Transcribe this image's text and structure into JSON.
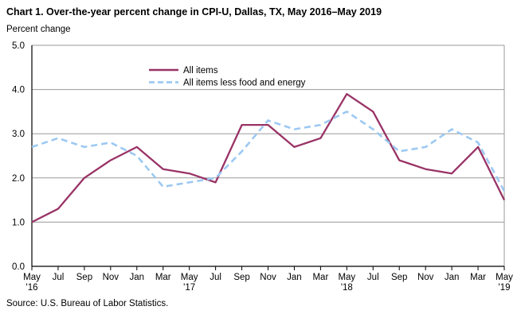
{
  "title": "Chart 1. Over-the-year percent change in CPI-U, Dallas, TX, May 2016–May 2019",
  "unit_label": "Percent change",
  "source": "Source: U.S. Bureau of Labor Statistics.",
  "colors": {
    "all_items": "#993366",
    "less_food_energy": "#9DC9F2",
    "grid": "#9a9a9a",
    "axis": "#000000",
    "text": "#000000"
  },
  "chart_data": {
    "type": "line",
    "title": "Chart 1. Over-the-year percent change in CPI-U, Dallas, TX, May 2016–May 2019",
    "ylabel": "Percent change",
    "xlabel": "",
    "ylim": [
      0,
      5
    ],
    "ytick_step": 1,
    "ytick_labels": [
      "0.0",
      "1.0",
      "2.0",
      "3.0",
      "4.0",
      "5.0"
    ],
    "grid": true,
    "legend_position": "inside-top",
    "x_labels": [
      {
        "m": "May",
        "y": "'16"
      },
      {
        "m": "Jul"
      },
      {
        "m": "Sep"
      },
      {
        "m": "Nov"
      },
      {
        "m": "Jan"
      },
      {
        "m": "Mar"
      },
      {
        "m": "May",
        "y": "'17"
      },
      {
        "m": "Jul"
      },
      {
        "m": "Sep"
      },
      {
        "m": "Nov"
      },
      {
        "m": "Jan"
      },
      {
        "m": "Mar"
      },
      {
        "m": "May",
        "y": "'18"
      },
      {
        "m": "Jul"
      },
      {
        "m": "Sep"
      },
      {
        "m": "Nov"
      },
      {
        "m": "Jan"
      },
      {
        "m": "Mar"
      },
      {
        "m": "May",
        "y": "'19"
      }
    ],
    "series": [
      {
        "name": "All items",
        "color": "#993366",
        "dash": false,
        "values": [
          1.0,
          1.3,
          2.0,
          2.4,
          2.7,
          2.2,
          2.1,
          1.9,
          3.2,
          3.2,
          2.7,
          2.9,
          3.9,
          3.5,
          2.4,
          2.2,
          2.1,
          2.7,
          1.5
        ]
      },
      {
        "name": "All items less food and energy",
        "color": "#9DC9F2",
        "dash": true,
        "values": [
          2.7,
          2.9,
          2.7,
          2.8,
          2.5,
          1.8,
          1.9,
          2.0,
          2.6,
          3.3,
          3.1,
          3.2,
          3.5,
          3.1,
          2.6,
          2.7,
          3.1,
          2.8,
          1.7
        ]
      }
    ]
  }
}
